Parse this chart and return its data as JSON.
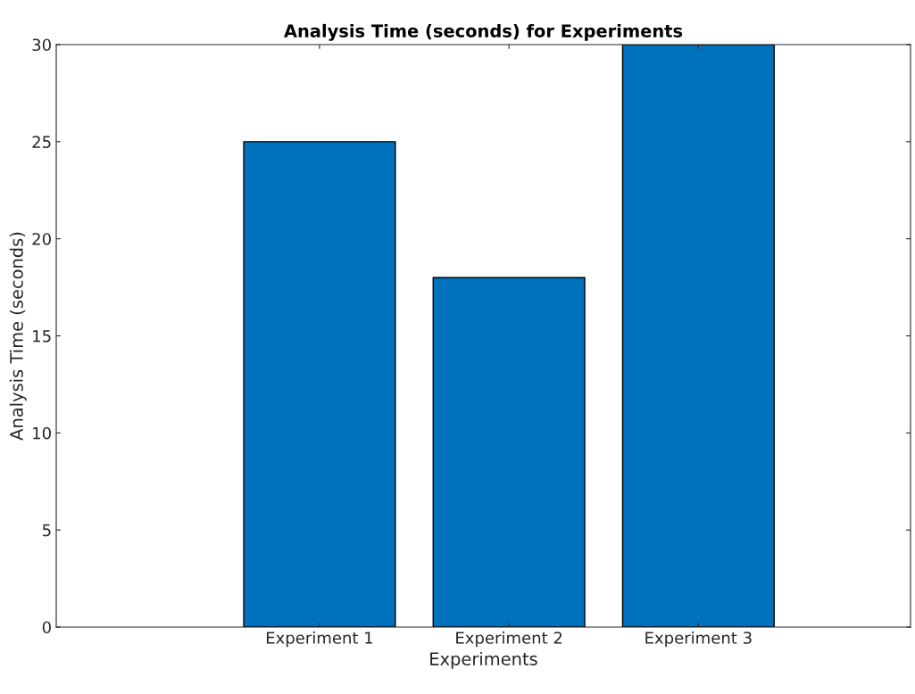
{
  "chart_data": {
    "type": "bar",
    "title": "Analysis Time (seconds) for Experiments",
    "xlabel": "Experiments",
    "ylabel": "Analysis Time (seconds)",
    "categories": [
      "Experiment 1",
      "Experiment 2",
      "Experiment 3"
    ],
    "values": [
      25,
      18,
      30
    ],
    "color": "#0072bd",
    "ylim": [
      0,
      30
    ],
    "yticks": [
      0,
      5,
      10,
      15,
      20,
      25,
      30
    ],
    "grid": false,
    "legend": false
  }
}
